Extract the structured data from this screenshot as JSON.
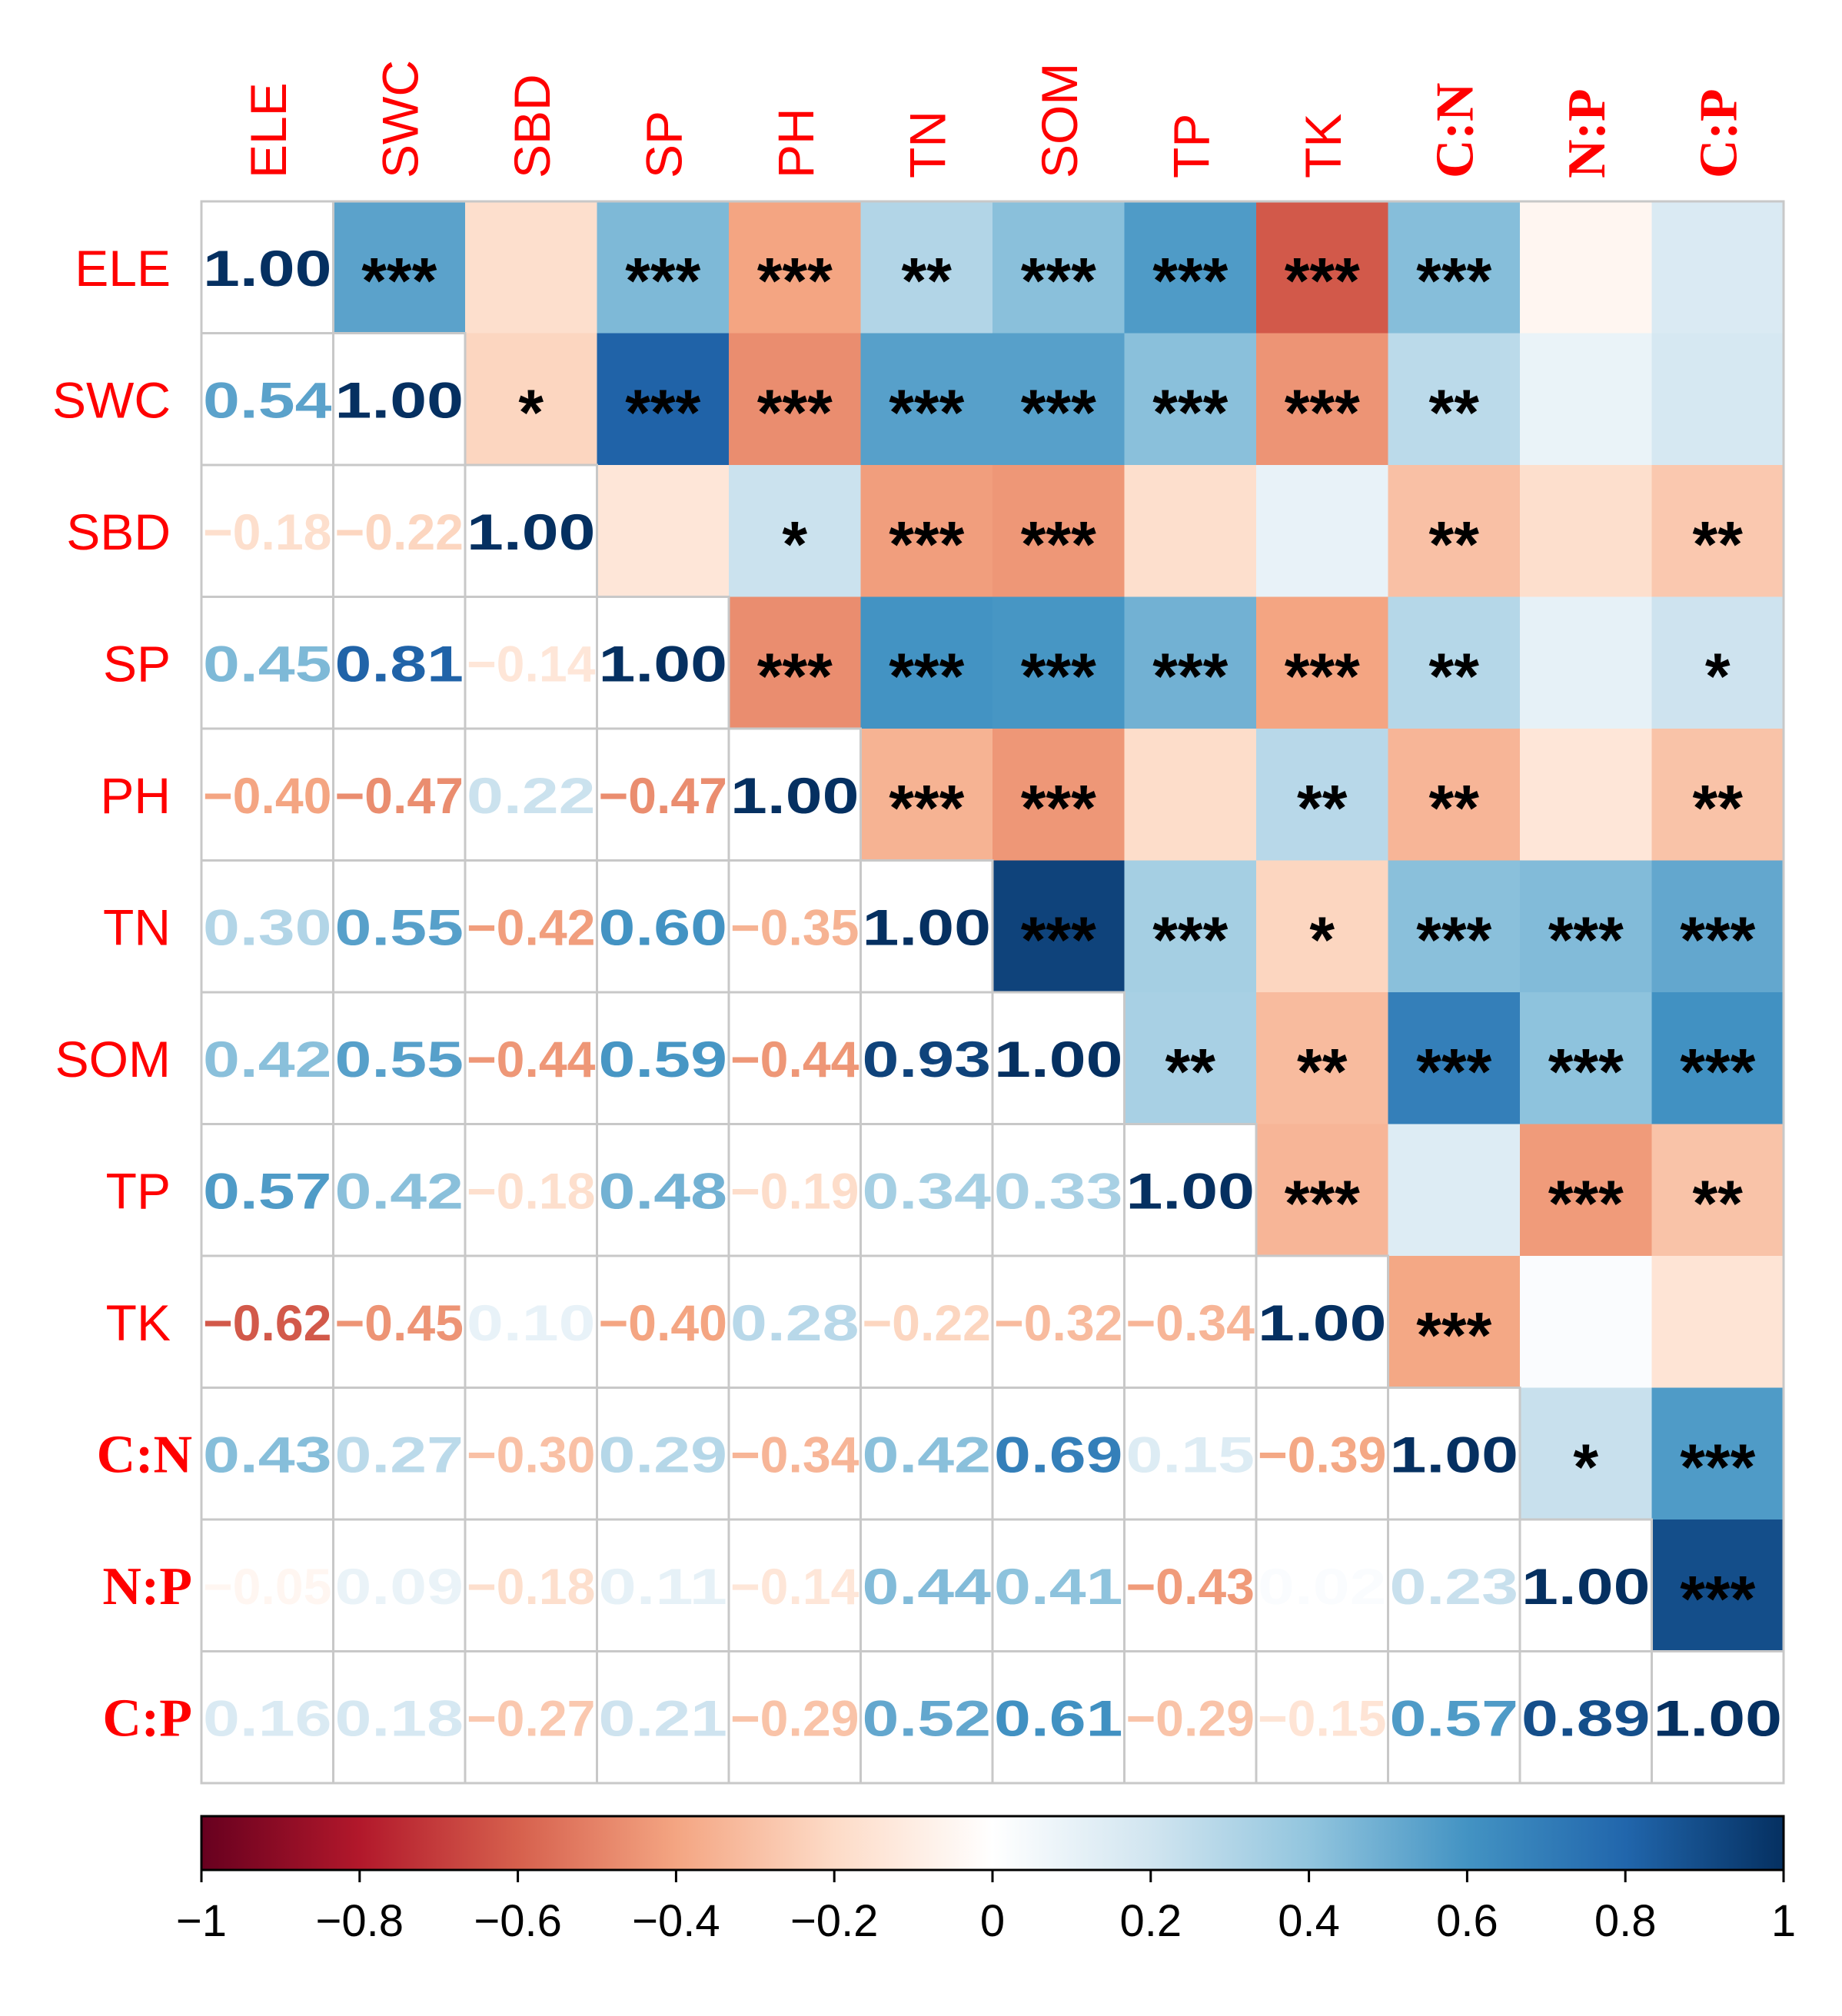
{
  "chart_data": {
    "type": "heatmap",
    "subtype": "correlation-matrix",
    "variables": [
      "ELE",
      "SWC",
      "SBD",
      "SP",
      "PH",
      "TN",
      "SOM",
      "TP",
      "TK",
      "C:N",
      "N:P",
      "C:P"
    ],
    "lower_triangle_text": "correlation coefficients",
    "upper_triangle_text": "significance stars",
    "matrix": [
      [
        1.0,
        0.54,
        -0.18,
        0.45,
        -0.4,
        0.3,
        0.42,
        0.57,
        -0.62,
        0.43,
        -0.05,
        0.16
      ],
      [
        0.54,
        1.0,
        -0.22,
        0.81,
        -0.47,
        0.55,
        0.55,
        0.42,
        -0.45,
        0.27,
        0.09,
        0.18
      ],
      [
        -0.18,
        -0.22,
        1.0,
        -0.14,
        0.22,
        -0.42,
        -0.44,
        -0.18,
        0.1,
        -0.3,
        -0.18,
        -0.27
      ],
      [
        0.45,
        0.81,
        -0.14,
        1.0,
        -0.47,
        0.6,
        0.59,
        0.48,
        -0.4,
        0.29,
        0.11,
        0.21
      ],
      [
        -0.4,
        -0.47,
        0.22,
        -0.47,
        1.0,
        -0.35,
        -0.44,
        -0.19,
        0.28,
        -0.34,
        -0.14,
        -0.29
      ],
      [
        0.3,
        0.55,
        -0.42,
        0.6,
        -0.35,
        1.0,
        0.93,
        0.34,
        -0.22,
        0.42,
        0.44,
        0.52
      ],
      [
        0.42,
        0.55,
        -0.44,
        0.59,
        -0.44,
        0.93,
        1.0,
        0.33,
        -0.32,
        0.69,
        0.41,
        0.61
      ],
      [
        0.57,
        0.42,
        -0.18,
        0.48,
        -0.19,
        0.34,
        0.33,
        1.0,
        -0.34,
        0.15,
        -0.43,
        -0.29
      ],
      [
        -0.62,
        -0.45,
        0.1,
        -0.4,
        0.28,
        -0.22,
        -0.32,
        -0.34,
        1.0,
        -0.39,
        0.02,
        -0.15
      ],
      [
        0.43,
        0.27,
        -0.3,
        0.29,
        -0.34,
        0.42,
        0.69,
        0.15,
        -0.39,
        1.0,
        0.23,
        0.57
      ],
      [
        -0.05,
        0.09,
        -0.18,
        0.11,
        -0.14,
        0.44,
        0.41,
        -0.43,
        0.02,
        0.23,
        1.0,
        0.89
      ],
      [
        0.16,
        0.18,
        -0.27,
        0.21,
        -0.29,
        0.52,
        0.61,
        -0.29,
        -0.15,
        0.57,
        0.89,
        1.0
      ]
    ],
    "significance": [
      [
        "",
        "***",
        "",
        "***",
        "***",
        "**",
        "***",
        "***",
        "***",
        "***",
        "",
        ""
      ],
      [
        "",
        "",
        "*",
        "***",
        "***",
        "***",
        "***",
        "***",
        "***",
        "**",
        "",
        ""
      ],
      [
        "",
        "",
        "",
        "",
        "*",
        "***",
        "***",
        "",
        "",
        "**",
        "",
        "**"
      ],
      [
        "",
        "",
        "",
        "",
        "***",
        "***",
        "***",
        "***",
        "***",
        "**",
        "",
        "*"
      ],
      [
        "",
        "",
        "",
        "",
        "",
        "***",
        "***",
        "",
        "**",
        "**",
        "",
        "**"
      ],
      [
        "",
        "",
        "",
        "",
        "",
        "",
        "***",
        "***",
        "*",
        "***",
        "***",
        "***"
      ],
      [
        "",
        "",
        "",
        "",
        "",
        "",
        "",
        "**",
        "**",
        "***",
        "***",
        "***"
      ],
      [
        "",
        "",
        "",
        "",
        "",
        "",
        "",
        "",
        "***",
        "",
        "***",
        "**"
      ],
      [
        "",
        "",
        "",
        "",
        "",
        "",
        "",
        "",
        "",
        "***",
        "",
        ""
      ],
      [
        "",
        "",
        "",
        "",
        "",
        "",
        "",
        "",
        "",
        "",
        "*",
        "***"
      ],
      [
        "",
        "",
        "",
        "",
        "",
        "",
        "",
        "",
        "",
        "",
        "",
        "***"
      ],
      [
        "",
        "",
        "",
        "",
        "",
        "",
        "",
        "",
        "",
        "",
        "",
        ""
      ]
    ],
    "colorbar": {
      "range": [
        -1,
        1
      ],
      "ticks": [
        -1,
        -0.8,
        -0.6,
        -0.4,
        -0.2,
        0,
        0.2,
        0.4,
        0.6,
        0.8,
        1
      ],
      "tick_labels": [
        "−1",
        "−0.8",
        "−0.6",
        "−0.4",
        "−0.2",
        "0",
        "0.2",
        "0.4",
        "0.6",
        "0.8",
        "1"
      ],
      "placement": "bottom"
    },
    "colors": {
      "label": "#ff0000",
      "grid": "#c8c8c8",
      "stars": "#000000",
      "scale": [
        "#67001f",
        "#b2182b",
        "#d6604d",
        "#f4a582",
        "#fddbc7",
        "#ffffff",
        "#d1e5f0",
        "#92c5de",
        "#4393c3",
        "#2166ac",
        "#053061"
      ]
    }
  }
}
